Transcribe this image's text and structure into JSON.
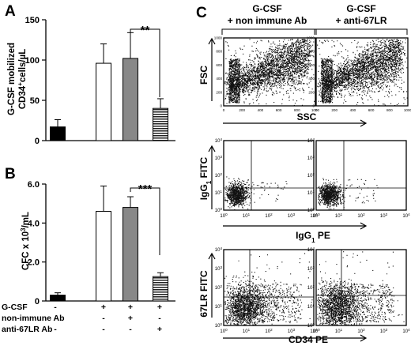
{
  "panelA": {
    "letter": "A",
    "ylabel_line1": "G-CSF mobilized",
    "ylabel_line2": "CD34",
    "ylabel_sup": "+",
    "ylabel_tail": "cells/µL",
    "sig": "**"
  },
  "panelB": {
    "letter": "B",
    "ylabel_base": "CFC x 10",
    "ylabel_sup": "3",
    "ylabel_tail": "/mL",
    "sig": "***"
  },
  "conditions": {
    "rows": [
      {
        "label": "G-CSF",
        "marks": [
          "-",
          "+",
          "+",
          "+"
        ]
      },
      {
        "label": "non-immune Ab",
        "marks": [
          "-",
          "-",
          "+",
          "-"
        ]
      },
      {
        "label": "anti-67LR Ab",
        "marks": [
          "-",
          "-",
          "-",
          "+"
        ]
      }
    ]
  },
  "chart_data": [
    {
      "type": "bar",
      "panel": "A",
      "categories": [
        "1",
        "2",
        "3",
        "4"
      ],
      "values": [
        17,
        96,
        102,
        40
      ],
      "errors": [
        9,
        24,
        32,
        12
      ],
      "fills": [
        "#000000",
        "#ffffff",
        "#888888",
        "stripes"
      ],
      "ylim": [
        0,
        150
      ],
      "yticks": [
        0,
        50,
        100,
        150
      ],
      "yticklabels": [
        "0",
        "50",
        "100",
        "150"
      ]
    },
    {
      "type": "bar",
      "panel": "B",
      "categories": [
        "1",
        "2",
        "3",
        "4"
      ],
      "values": [
        0.3,
        4.6,
        4.8,
        1.25
      ],
      "errors": [
        0.12,
        1.3,
        0.55,
        0.2
      ],
      "fills": [
        "#000000",
        "#ffffff",
        "#888888",
        "stripes"
      ],
      "ylim": [
        0,
        6
      ],
      "yticks": [
        0,
        2,
        4,
        6
      ],
      "yticklabels": [
        "0",
        "2.0",
        "4.0",
        "6.0"
      ]
    }
  ],
  "panelC": {
    "letter": "C",
    "col1_title_line1": "G-CSF",
    "col1_title_line2": "+ non immune Ab",
    "col2_title_line1": "G-CSF",
    "col2_title_line2": "+ anti-67LR",
    "row1_ylabel": "FSC",
    "row1_xlabel": "SSC",
    "row2_ylabel_base": "IgG",
    "row2_ylabel_sub": "1",
    "row2_ylabel_tail": " FITC",
    "row2_xlabel_base": "IgG",
    "row2_xlabel_sub": "1",
    "row2_xlabel_tail": " PE",
    "row3_ylabel": "67LR FITC",
    "row3_xlabel": "CD34 PE",
    "lin_ticks": [
      "0",
      "200",
      "400",
      "600",
      "800",
      "1000"
    ],
    "log_ticks": [
      "10",
      "10",
      "10",
      "10",
      "10"
    ],
    "log_exps": [
      "0",
      "1",
      "2",
      "3",
      "4"
    ]
  }
}
